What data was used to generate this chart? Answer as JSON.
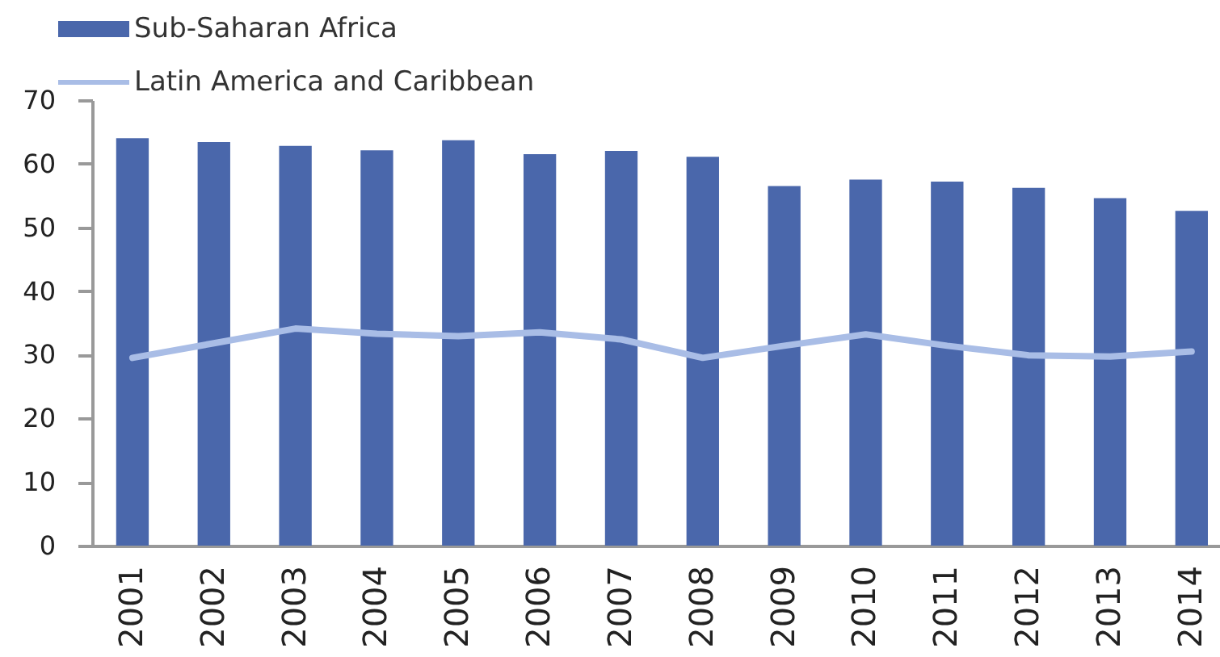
{
  "chart_data": {
    "type": "bar",
    "categories": [
      "2001",
      "2002",
      "2003",
      "2004",
      "2005",
      "2006",
      "2007",
      "2008",
      "2009",
      "2010",
      "2011",
      "2012",
      "2013",
      "2014"
    ],
    "ylim": [
      0,
      70
    ],
    "yticks": [
      0,
      10,
      20,
      30,
      40,
      50,
      60,
      70
    ],
    "legend": "top left",
    "series": [
      {
        "name": "Sub-Saharan Africa",
        "color": "#4a67ab",
        "values": [
          64.0,
          63.4,
          62.8,
          62.1,
          63.7,
          61.5,
          62.0,
          61.1,
          56.5,
          57.5,
          57.2,
          56.2,
          54.6,
          52.6
        ]
      },
      {
        "name": "Latin America and Caribbean",
        "type": "line",
        "color": "#a9bde6",
        "values": [
          29.5,
          31.8,
          34.1,
          33.3,
          32.9,
          33.5,
          32.4,
          29.5,
          31.4,
          33.2,
          31.4,
          29.9,
          29.7,
          30.5
        ]
      }
    ]
  }
}
